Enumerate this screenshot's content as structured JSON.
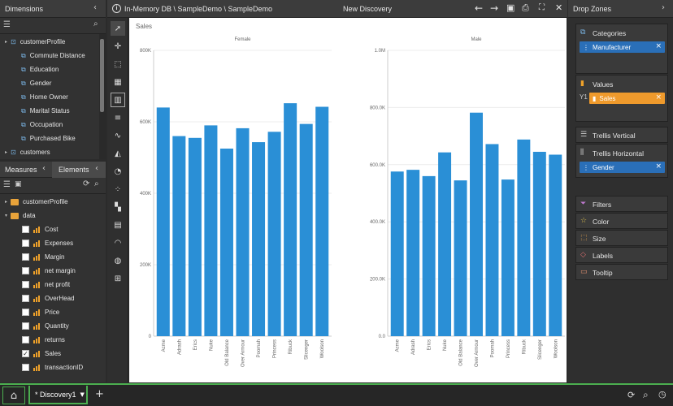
{
  "app": {
    "path": "In-Memory DB \\ SampleDemo \\ SampleDemo",
    "discovery_title": "New Discovery",
    "info_icon": "i"
  },
  "dimensions": {
    "title": "Dimensions",
    "items": [
      {
        "label": "customerProfile",
        "level": 0,
        "type": "table"
      },
      {
        "label": "Commute Distance",
        "level": 1,
        "type": "hier"
      },
      {
        "label": "Education",
        "level": 1,
        "type": "hier"
      },
      {
        "label": "Gender",
        "level": 1,
        "type": "hier"
      },
      {
        "label": "Home Owner",
        "level": 1,
        "type": "hier"
      },
      {
        "label": "Marital Status",
        "level": 1,
        "type": "hier"
      },
      {
        "label": "Occupation",
        "level": 1,
        "type": "hier"
      },
      {
        "label": "Purchased Bike",
        "level": 1,
        "type": "hier"
      },
      {
        "label": "customers",
        "level": 0,
        "type": "table"
      }
    ]
  },
  "measures": {
    "tab_measures": "Measures",
    "tab_elements": "Elements",
    "folders": [
      "customerProfile",
      "data"
    ],
    "items": [
      {
        "label": "Cost",
        "checked": false
      },
      {
        "label": "Expenses",
        "checked": false
      },
      {
        "label": "Margin",
        "checked": false
      },
      {
        "label": "net margin",
        "checked": false
      },
      {
        "label": "net profit",
        "checked": false
      },
      {
        "label": "OverHead",
        "checked": false
      },
      {
        "label": "Price",
        "checked": false
      },
      {
        "label": "Quantity",
        "checked": false
      },
      {
        "label": "returns",
        "checked": false
      },
      {
        "label": "Sales",
        "checked": true
      },
      {
        "label": "transactionID",
        "checked": false
      }
    ]
  },
  "dropzones": {
    "title": "Drop Zones",
    "categories": "Categories",
    "categories_pill": "Manufacturer",
    "values": "Values",
    "values_axis": "Y1",
    "values_pill": "Sales",
    "trellis_vertical": "Trellis Vertical",
    "trellis_horizontal": "Trellis Horizontal",
    "trellis_horizontal_pill": "Gender",
    "filters": "Filters",
    "color": "Color",
    "size": "Size",
    "labels": "Labels",
    "tooltip": "Tooltip"
  },
  "bottom": {
    "tab_label": "* Discovery1"
  },
  "chart_data": [
    {
      "type": "bar",
      "title": "Female",
      "ylabel": "Sales",
      "ylim": [
        0,
        800000
      ],
      "yticks": [
        0,
        200000,
        400000,
        600000,
        800000
      ],
      "ytick_labels": [
        "0",
        "200K",
        "400K",
        "600K",
        "800K"
      ],
      "categories": [
        "Acme",
        "Adrash",
        "Erics",
        "Nuke",
        "Old Balance",
        "Over Armour",
        "Poomah",
        "Princess",
        "Ribuck",
        "Slicenger",
        "Woolson"
      ],
      "values": [
        640000,
        560000,
        555000,
        590000,
        525000,
        582000,
        543000,
        572000,
        652000,
        594000,
        642000
      ],
      "color": "#2a8fd6"
    },
    {
      "type": "bar",
      "title": "Male",
      "ylim": [
        0,
        1000000
      ],
      "yticks": [
        0,
        200000,
        400000,
        600000,
        800000,
        1000000
      ],
      "ytick_labels": [
        "0.0",
        "200.0K",
        "400.0K",
        "600.0K",
        "800.0K",
        "1.0M"
      ],
      "categories": [
        "Acme",
        "Adrash",
        "Erics",
        "Nuke",
        "Old Balance",
        "Over Armour",
        "Poomah",
        "Princess",
        "Ribuck",
        "Slicenger",
        "Woolson"
      ],
      "values": [
        576000,
        582000,
        560000,
        643000,
        545000,
        782000,
        672000,
        548000,
        688000,
        645000,
        635000
      ],
      "color": "#2a8fd6"
    }
  ]
}
